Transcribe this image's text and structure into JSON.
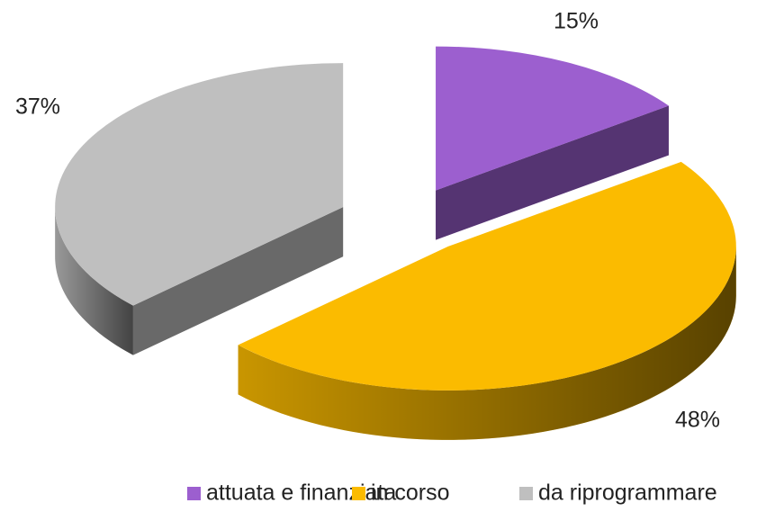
{
  "chart_data": {
    "type": "pie",
    "categories": [
      "attuata e finanziata",
      "in corso",
      "da riprogrammare"
    ],
    "values": [
      15,
      48,
      37
    ],
    "value_labels": [
      "15%",
      "48%",
      "37%"
    ],
    "colors": [
      "#9c5fcf",
      "#fbbb00",
      "#bfbfbf"
    ],
    "legend": "bottom"
  }
}
